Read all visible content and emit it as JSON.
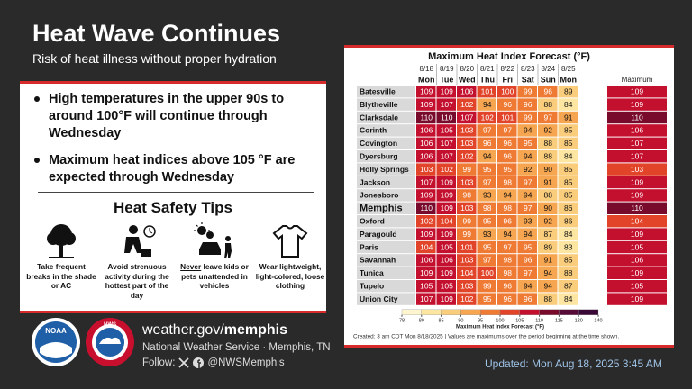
{
  "header": {
    "title": "Heat Wave Continues",
    "subtitle": "Risk of heat illness without proper hydration"
  },
  "bullets": [
    "High temperatures in the upper 90s to around 100°F will continue through Wednesday",
    "Maximum heat indices above 105 °F are expected through Wednesday"
  ],
  "tips": {
    "title": "Heat Safety Tips",
    "items": [
      {
        "caption": "Take frequent breaks in the shade or AC"
      },
      {
        "caption": "Avoid strenuous activity during the hottest part of the day"
      },
      {
        "emphasis": "Never",
        "caption": "leave kids or pets unattended in vehicles"
      },
      {
        "caption": "Wear lightweight, light-colored, loose clothing"
      }
    ]
  },
  "table": {
    "title": "Maximum Heat Index Forecast (°F)",
    "dates": [
      "8/18",
      "8/19",
      "8/20",
      "8/21",
      "8/22",
      "8/23",
      "8/24",
      "8/25"
    ],
    "days": [
      "Mon",
      "Tue",
      "Wed",
      "Thu",
      "Fri",
      "Sat",
      "Sun",
      "Mon"
    ],
    "max_header": "Maximum",
    "rows": [
      {
        "city": "Batesville",
        "values": [
          109,
          109,
          106,
          101,
          100,
          99,
          96,
          89
        ],
        "max": 109
      },
      {
        "city": "Blytheville",
        "values": [
          109,
          107,
          102,
          94,
          96,
          96,
          88,
          84
        ],
        "max": 109
      },
      {
        "city": "Clarksdale",
        "values": [
          110,
          110,
          107,
          102,
          101,
          99,
          97,
          91
        ],
        "max": 110
      },
      {
        "city": "Corinth",
        "values": [
          106,
          105,
          103,
          97,
          97,
          94,
          92,
          85
        ],
        "max": 106
      },
      {
        "city": "Covington",
        "values": [
          106,
          107,
          103,
          96,
          96,
          95,
          88,
          85
        ],
        "max": 107
      },
      {
        "city": "Dyersburg",
        "values": [
          106,
          107,
          102,
          94,
          96,
          94,
          88,
          84
        ],
        "max": 107
      },
      {
        "city": "Holly Springs",
        "values": [
          103,
          102,
          99,
          95,
          95,
          92,
          90,
          85
        ],
        "max": 103
      },
      {
        "city": "Jackson",
        "values": [
          107,
          109,
          103,
          97,
          98,
          97,
          91,
          85
        ],
        "max": 109
      },
      {
        "city": "Jonesboro",
        "values": [
          109,
          109,
          98,
          93,
          94,
          94,
          88,
          85
        ],
        "max": 109
      },
      {
        "city": "Memphis",
        "values": [
          110,
          109,
          103,
          98,
          98,
          97,
          90,
          86
        ],
        "max": 110,
        "bold": true
      },
      {
        "city": "Oxford",
        "values": [
          102,
          104,
          99,
          95,
          96,
          93,
          92,
          86
        ],
        "max": 104
      },
      {
        "city": "Paragould",
        "values": [
          109,
          109,
          99,
          93,
          94,
          94,
          87,
          84
        ],
        "max": 109
      },
      {
        "city": "Paris",
        "values": [
          104,
          105,
          101,
          95,
          97,
          95,
          89,
          83
        ],
        "max": 105
      },
      {
        "city": "Savannah",
        "values": [
          106,
          106,
          103,
          97,
          98,
          96,
          91,
          85
        ],
        "max": 106
      },
      {
        "city": "Tunica",
        "values": [
          109,
          109,
          104,
          100,
          98,
          97,
          94,
          88
        ],
        "max": 109
      },
      {
        "city": "Tupelo",
        "values": [
          105,
          105,
          103,
          99,
          96,
          94,
          94,
          87
        ],
        "max": 105
      },
      {
        "city": "Union City",
        "values": [
          107,
          109,
          102,
          95,
          96,
          96,
          88,
          84
        ],
        "max": 109
      }
    ],
    "colorbar": {
      "ticks": [
        78,
        80,
        85,
        90,
        95,
        100,
        105,
        110,
        115,
        120,
        140
      ],
      "colors": [
        "#fff6cf",
        "#fde6a2",
        "#f9cd7c",
        "#f6a650",
        "#ef7a33",
        "#e2442a",
        "#c4102f",
        "#780a2c",
        "#560a38",
        "#3a0836"
      ],
      "label": "Maximum Heat Index Forecast (°F)"
    },
    "note": "Created: 3 am CDT Mon 8/18/2025  |  Values are maximums over the period beginning at the time shown."
  },
  "logos": {
    "noaa": "NOAA",
    "nws": "NWS"
  },
  "footer": {
    "site": "weather.gov/",
    "site_bold": "memphis",
    "office": "National Weather Service · Memphis, TN",
    "follow": "Follow:",
    "handle": "@NWSMemphis",
    "updated": "Updated: Mon Aug 18, 2025 3:45 AM"
  }
}
